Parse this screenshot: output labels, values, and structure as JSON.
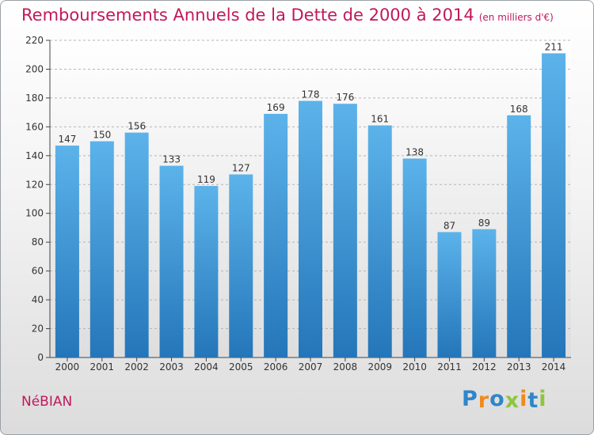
{
  "title": "Remboursements Annuels de la Dette de 2000 à 2014",
  "subtitle": "(en milliers d'€)",
  "commune": "NéBIAN",
  "logo": {
    "letters": [
      "P",
      "r",
      "o",
      "x",
      "i",
      "t",
      "i"
    ],
    "colors": [
      "#2f86c9",
      "#f08a1c",
      "#2f86c9",
      "#8dc63f",
      "#f08a1c",
      "#2f86c9",
      "#8dc63f"
    ]
  },
  "colors": {
    "title": "#c2185b",
    "bar_top": "#5cb3ea",
    "bar_bottom": "#2476b9"
  },
  "chart_data": {
    "type": "bar",
    "title": "Remboursements Annuels de la Dette de 2000 à 2014",
    "subtitle": "(en milliers d'€)",
    "categories": [
      "2000",
      "2001",
      "2002",
      "2003",
      "2004",
      "2005",
      "2006",
      "2007",
      "2008",
      "2009",
      "2010",
      "2011",
      "2012",
      "2013",
      "2014"
    ],
    "values": [
      147,
      150,
      156,
      133,
      119,
      127,
      169,
      178,
      176,
      161,
      138,
      87,
      89,
      168,
      211
    ],
    "xlabel": "",
    "ylabel": "",
    "ylim": [
      0,
      220
    ],
    "yticks": [
      0,
      20,
      40,
      60,
      80,
      100,
      120,
      140,
      160,
      180,
      200,
      220
    ],
    "grid": true,
    "data_labels": true
  }
}
